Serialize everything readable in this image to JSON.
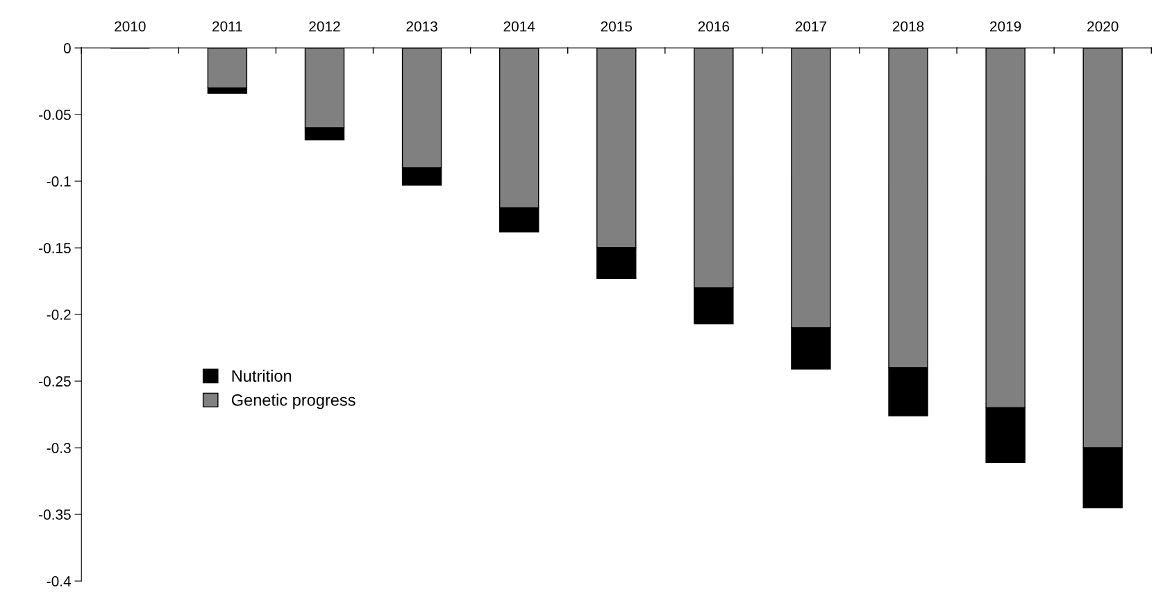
{
  "chart_data": {
    "type": "bar",
    "stacked": true,
    "categories": [
      "2010",
      "2011",
      "2012",
      "2013",
      "2014",
      "2015",
      "2016",
      "2017",
      "2018",
      "2019",
      "2020"
    ],
    "series": [
      {
        "name": "Genetic progress",
        "color": "#808080",
        "values": [
          0,
          -0.03,
          -0.06,
          -0.09,
          -0.12,
          -0.15,
          -0.18,
          -0.21,
          -0.24,
          -0.27,
          -0.3
        ]
      },
      {
        "name": "Nutrition",
        "color": "#000000",
        "values": [
          0,
          -0.004,
          -0.009,
          -0.013,
          -0.018,
          -0.023,
          -0.027,
          -0.031,
          -0.036,
          -0.041,
          -0.045
        ]
      }
    ],
    "ylim": [
      -0.4,
      0
    ],
    "yticks": [
      -0.4,
      -0.35,
      -0.3,
      -0.25,
      -0.2,
      -0.15,
      -0.1,
      -0.05,
      0
    ],
    "grid": false,
    "legend": "left"
  }
}
